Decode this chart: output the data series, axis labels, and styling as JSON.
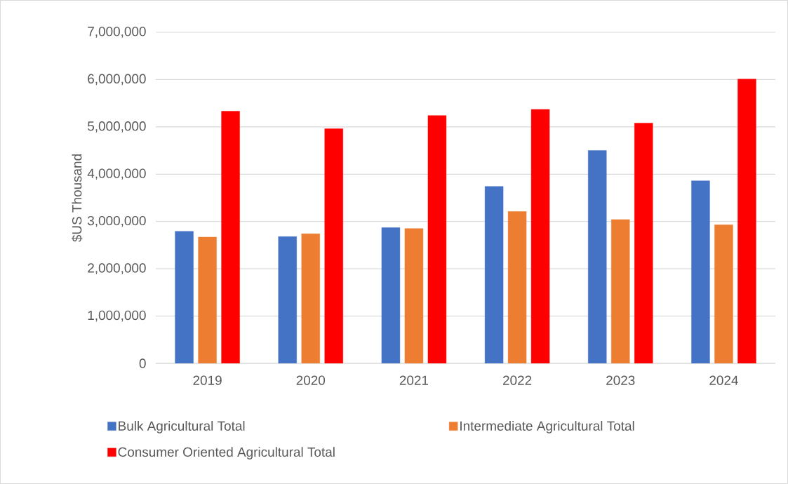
{
  "chart_data": {
    "type": "bar",
    "ylabel": "$US Thousand",
    "categories": [
      "2019",
      "2020",
      "2021",
      "2022",
      "2023",
      "2024"
    ],
    "series": [
      {
        "name": "Bulk Agricultural Total",
        "color": "#4472c4",
        "values": [
          2790000,
          2680000,
          2870000,
          3740000,
          4500000,
          3860000
        ]
      },
      {
        "name": "Intermediate Agricultural Total",
        "color": "#ed7d31",
        "values": [
          2670000,
          2740000,
          2850000,
          3210000,
          3040000,
          2930000
        ]
      },
      {
        "name": "Consumer Oriented Agricultural Total",
        "color": "#ff0000",
        "values": [
          5330000,
          4960000,
          5240000,
          5370000,
          5080000,
          6010000
        ]
      }
    ],
    "ylim": [
      0,
      7000000
    ],
    "yticks": [
      {
        "value": 0,
        "label": "0"
      },
      {
        "value": 1000000,
        "label": "1,000,000"
      },
      {
        "value": 2000000,
        "label": "2,000,000"
      },
      {
        "value": 3000000,
        "label": "3,000,000"
      },
      {
        "value": 4000000,
        "label": "4,000,000"
      },
      {
        "value": 5000000,
        "label": "5,000,000"
      },
      {
        "value": 6000000,
        "label": "6,000,000"
      },
      {
        "value": 7000000,
        "label": "7,000,000"
      }
    ],
    "grid": "y",
    "legend": "bottom"
  }
}
